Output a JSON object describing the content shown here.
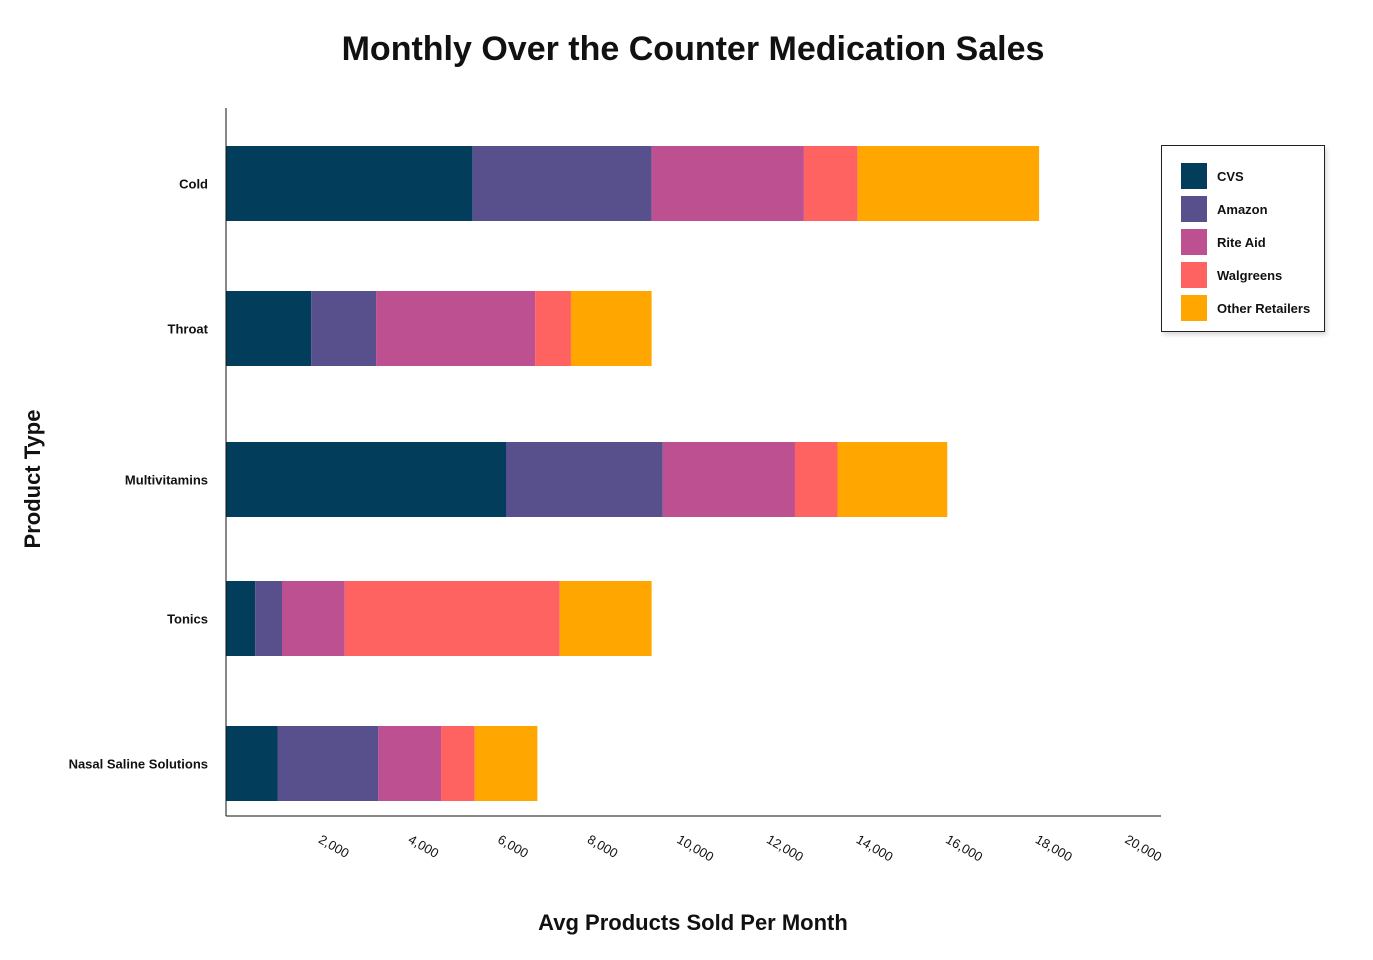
{
  "chart_data": {
    "type": "bar",
    "orientation": "horizontal",
    "stacked": true,
    "title": "Monthly Over the Counter Medication Sales",
    "xlabel": "Avg Products Sold Per Month",
    "ylabel": "Product Type",
    "xlim": [
      0,
      20000
    ],
    "xticks": [
      2000,
      4000,
      6000,
      8000,
      10000,
      12000,
      14000,
      16000,
      18000,
      20000
    ],
    "xtick_labels": [
      "2,000",
      "4,000",
      "6,000",
      "8,000",
      "10,000",
      "12,000",
      "14,000",
      "16,000",
      "18,000",
      "20,000"
    ],
    "categories": [
      "Cold",
      "Throat",
      "Multivitamins",
      "Tonics",
      "Nasal Saline Solutions"
    ],
    "series": [
      {
        "name": "CVS",
        "color": "#023e5c",
        "values": [
          5500,
          1900,
          6250,
          650,
          1150
        ]
      },
      {
        "name": "Amazon",
        "color": "#58508d",
        "values": [
          4000,
          1450,
          3500,
          600,
          2250
        ]
      },
      {
        "name": "Rite Aid",
        "color": "#bc5090",
        "values": [
          3400,
          3550,
          2950,
          1400,
          1400
        ]
      },
      {
        "name": "Walgreens",
        "color": "#ff6361",
        "values": [
          1200,
          800,
          950,
          4800,
          750
        ]
      },
      {
        "name": "Other Retailers",
        "color": "#ffa600",
        "values": [
          4050,
          1800,
          2450,
          2050,
          1400
        ]
      }
    ],
    "legend_position": "top-right",
    "grid": false
  }
}
